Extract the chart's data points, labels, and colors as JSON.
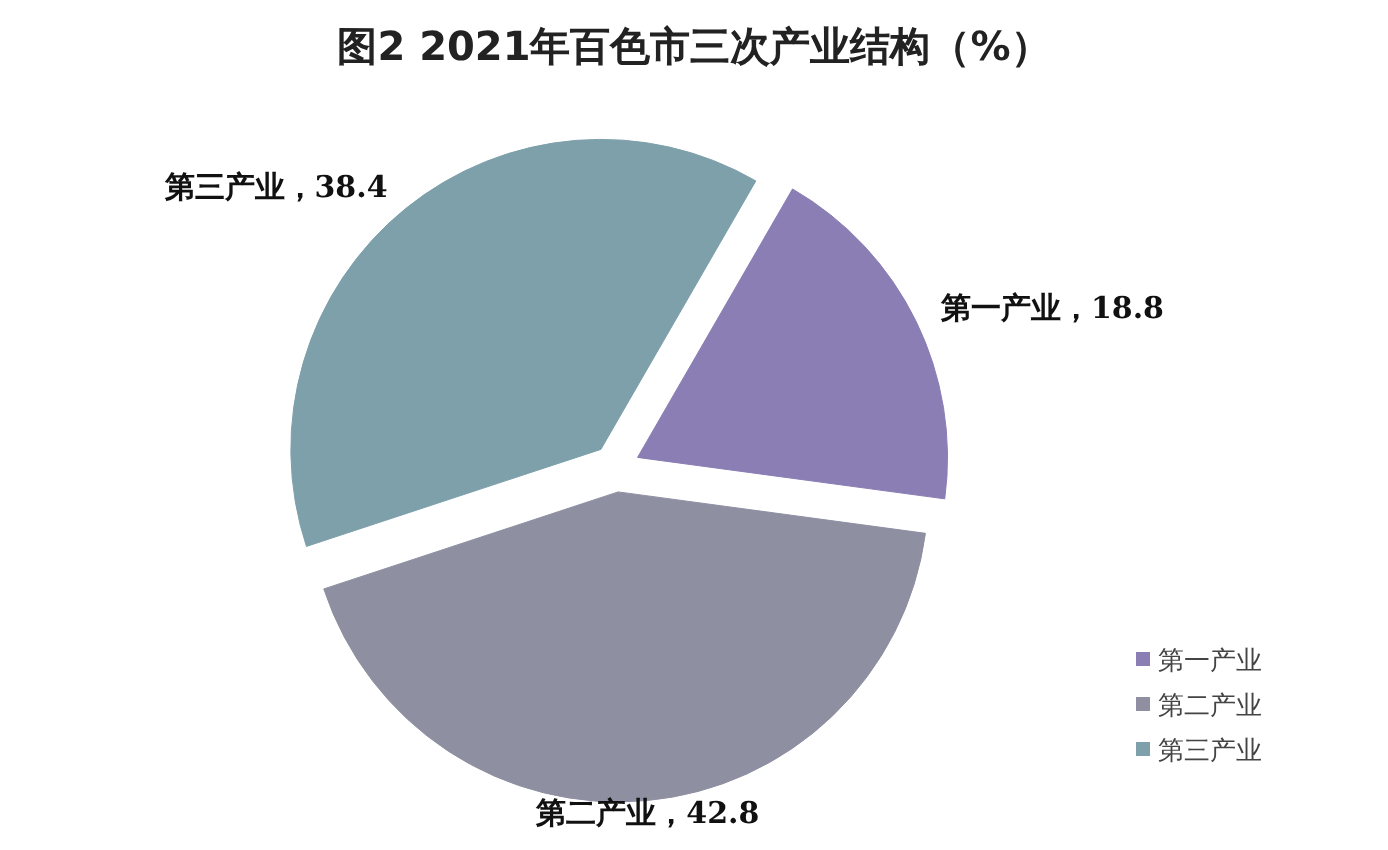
{
  "chart_data": {
    "type": "pie",
    "title": "图2 2021年百色市三次产业结构（%）",
    "categories": [
      "第一产业",
      "第二产业",
      "第三产业"
    ],
    "values": [
      18.8,
      42.8,
      38.4
    ],
    "colors": [
      "#8a7eb4",
      "#8e90a2",
      "#7da0aa"
    ],
    "value_labels": [
      "第一产业，18.8",
      "第二产业，42.8",
      "第三产业，38.4"
    ],
    "legend": "bottom right"
  }
}
